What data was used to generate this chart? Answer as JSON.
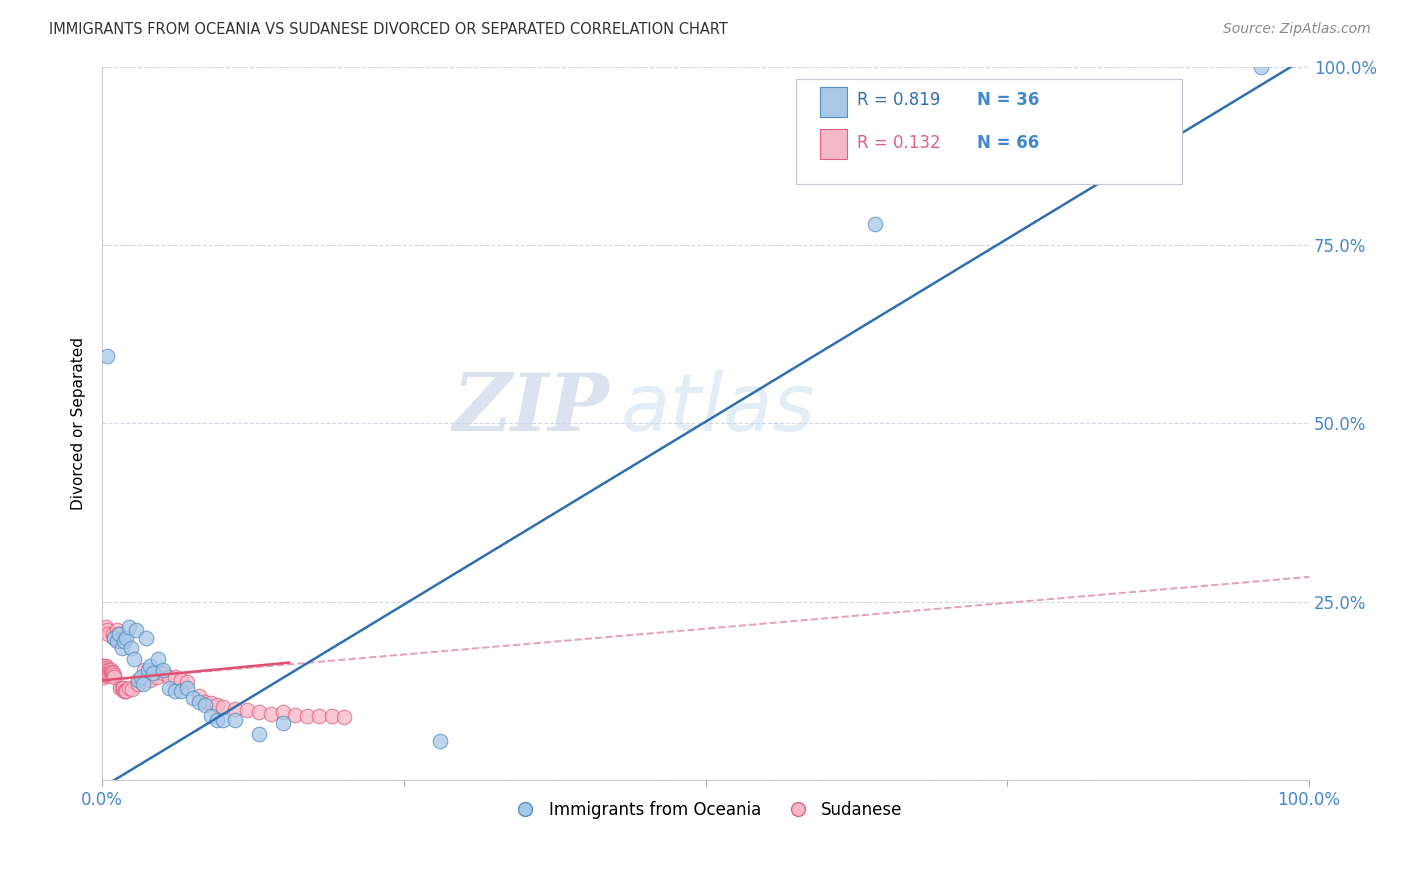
{
  "title": "IMMIGRANTS FROM OCEANIA VS SUDANESE DIVORCED OR SEPARATED CORRELATION CHART",
  "source": "Source: ZipAtlas.com",
  "ylabel": "Divorced or Separated",
  "legend_blue_r": "R = 0.819",
  "legend_blue_n": "N = 36",
  "legend_pink_r": "R = 0.132",
  "legend_pink_n": "N = 66",
  "legend_label_blue": "Immigrants from Oceania",
  "legend_label_pink": "Sudanese",
  "blue_fill": "#a8c8e8",
  "pink_fill": "#f4b8c8",
  "blue_edge": "#5090c0",
  "pink_edge": "#e06080",
  "blue_line_color": "#3070b0",
  "pink_line_color": "#e05070",
  "pink_dash_color": "#e090a8",
  "watermark_zip": "ZIP",
  "watermark_atlas": "atlas",
  "tick_color": "#4488cc",
  "grid_color": "#d0d8e8",
  "bg_color": "#ffffff",
  "blue_dots": [
    [
      0.004,
      0.595
    ],
    [
      0.01,
      0.2
    ],
    [
      0.012,
      0.195
    ],
    [
      0.014,
      0.205
    ],
    [
      0.016,
      0.185
    ],
    [
      0.018,
      0.195
    ],
    [
      0.02,
      0.2
    ],
    [
      0.022,
      0.215
    ],
    [
      0.024,
      0.185
    ],
    [
      0.026,
      0.17
    ],
    [
      0.028,
      0.21
    ],
    [
      0.03,
      0.14
    ],
    [
      0.032,
      0.145
    ],
    [
      0.034,
      0.135
    ],
    [
      0.036,
      0.2
    ],
    [
      0.038,
      0.155
    ],
    [
      0.04,
      0.16
    ],
    [
      0.042,
      0.15
    ],
    [
      0.046,
      0.17
    ],
    [
      0.05,
      0.155
    ],
    [
      0.055,
      0.13
    ],
    [
      0.06,
      0.125
    ],
    [
      0.065,
      0.125
    ],
    [
      0.07,
      0.13
    ],
    [
      0.075,
      0.115
    ],
    [
      0.08,
      0.11
    ],
    [
      0.085,
      0.105
    ],
    [
      0.09,
      0.09
    ],
    [
      0.095,
      0.085
    ],
    [
      0.1,
      0.085
    ],
    [
      0.11,
      0.085
    ],
    [
      0.13,
      0.065
    ],
    [
      0.15,
      0.08
    ],
    [
      0.28,
      0.055
    ],
    [
      0.64,
      0.78
    ],
    [
      0.96,
      1.0
    ]
  ],
  "pink_dots": [
    [
      0.0,
      0.16
    ],
    [
      0.0,
      0.155
    ],
    [
      0.0,
      0.15
    ],
    [
      0.001,
      0.16
    ],
    [
      0.001,
      0.155
    ],
    [
      0.001,
      0.15
    ],
    [
      0.001,
      0.145
    ],
    [
      0.002,
      0.158
    ],
    [
      0.002,
      0.153
    ],
    [
      0.002,
      0.148
    ],
    [
      0.003,
      0.16
    ],
    [
      0.003,
      0.155
    ],
    [
      0.003,
      0.15
    ],
    [
      0.003,
      0.215
    ],
    [
      0.004,
      0.158
    ],
    [
      0.004,
      0.153
    ],
    [
      0.004,
      0.21
    ],
    [
      0.005,
      0.155
    ],
    [
      0.005,
      0.15
    ],
    [
      0.005,
      0.205
    ],
    [
      0.006,
      0.152
    ],
    [
      0.006,
      0.148
    ],
    [
      0.007,
      0.155
    ],
    [
      0.007,
      0.15
    ],
    [
      0.008,
      0.152
    ],
    [
      0.008,
      0.148
    ],
    [
      0.009,
      0.15
    ],
    [
      0.009,
      0.205
    ],
    [
      0.01,
      0.148
    ],
    [
      0.01,
      0.145
    ],
    [
      0.01,
      0.2
    ],
    [
      0.012,
      0.21
    ],
    [
      0.013,
      0.205
    ],
    [
      0.014,
      0.195
    ],
    [
      0.015,
      0.13
    ],
    [
      0.016,
      0.13
    ],
    [
      0.017,
      0.13
    ],
    [
      0.018,
      0.125
    ],
    [
      0.019,
      0.125
    ],
    [
      0.02,
      0.125
    ],
    [
      0.022,
      0.13
    ],
    [
      0.025,
      0.128
    ],
    [
      0.03,
      0.135
    ],
    [
      0.035,
      0.155
    ],
    [
      0.04,
      0.14
    ],
    [
      0.045,
      0.145
    ],
    [
      0.05,
      0.15
    ],
    [
      0.055,
      0.145
    ],
    [
      0.06,
      0.145
    ],
    [
      0.065,
      0.14
    ],
    [
      0.07,
      0.138
    ],
    [
      0.08,
      0.118
    ],
    [
      0.085,
      0.11
    ],
    [
      0.09,
      0.108
    ],
    [
      0.095,
      0.105
    ],
    [
      0.1,
      0.103
    ],
    [
      0.11,
      0.1
    ],
    [
      0.12,
      0.098
    ],
    [
      0.13,
      0.095
    ],
    [
      0.14,
      0.093
    ],
    [
      0.15,
      0.095
    ],
    [
      0.16,
      0.092
    ],
    [
      0.17,
      0.09
    ],
    [
      0.18,
      0.09
    ],
    [
      0.19,
      0.09
    ],
    [
      0.2,
      0.088
    ]
  ],
  "xlim": [
    0.0,
    1.0
  ],
  "ylim": [
    0.0,
    1.0
  ],
  "xticks": [
    0.0,
    0.25,
    0.5,
    0.75,
    1.0
  ],
  "yticks": [
    0.0,
    0.25,
    0.5,
    0.75,
    1.0
  ],
  "blue_line": [
    [
      0.0,
      -0.01
    ],
    [
      1.0,
      1.015
    ]
  ],
  "pink_line_solid": [
    [
      0.0,
      0.14
    ],
    [
      0.155,
      0.165
    ]
  ],
  "pink_line_dash": [
    [
      0.0,
      0.14
    ],
    [
      1.0,
      0.285
    ]
  ]
}
